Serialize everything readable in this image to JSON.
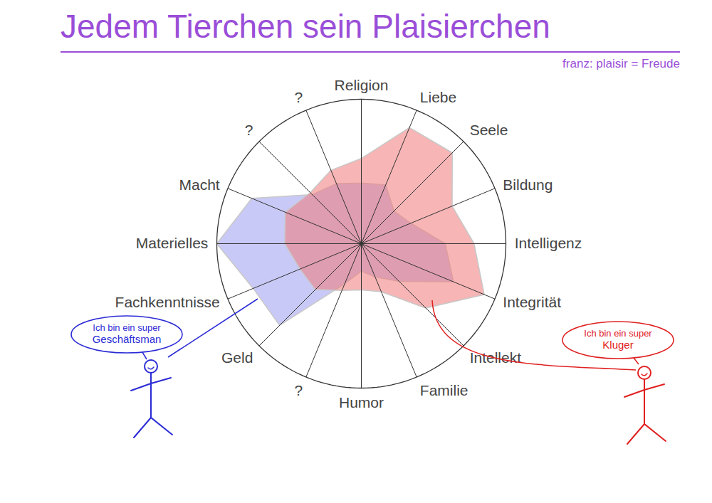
{
  "chart_data": {
    "type": "radar",
    "title": "Jedem Tierchen sein Plaisierchen",
    "subtitle": "franz: plaisir = Freude",
    "categories": [
      "Religion",
      "Liebe",
      "Seele",
      "Bildung",
      "Intelligenz",
      "Integrität",
      "Intellekt",
      "Familie",
      "Humor",
      "?",
      "Geld",
      "Fachkenntnisse",
      "Materielles",
      "Macht",
      "?",
      "?"
    ],
    "rlim": [
      0,
      100
    ],
    "tick_labels": false,
    "series": [
      {
        "color": "#9c9cf0",
        "values": [
          42,
          44,
          32,
          37,
          58,
          69,
          37,
          25,
          19,
          30,
          80,
          81,
          100,
          82,
          48,
          45
        ]
      },
      {
        "color": "#f07878",
        "values": [
          59,
          87,
          89,
          68,
          78,
          92,
          63,
          36,
          32,
          35,
          45,
          46,
          53,
          57,
          50,
          55
        ]
      }
    ],
    "annotations": [
      {
        "lines": [
          "Ich bin ein super",
          "Geschäftsman"
        ],
        "color": "#2b2bd6"
      },
      {
        "lines": [
          "Ich bin ein super",
          "Kluger"
        ],
        "color": "#e02020"
      }
    ]
  }
}
